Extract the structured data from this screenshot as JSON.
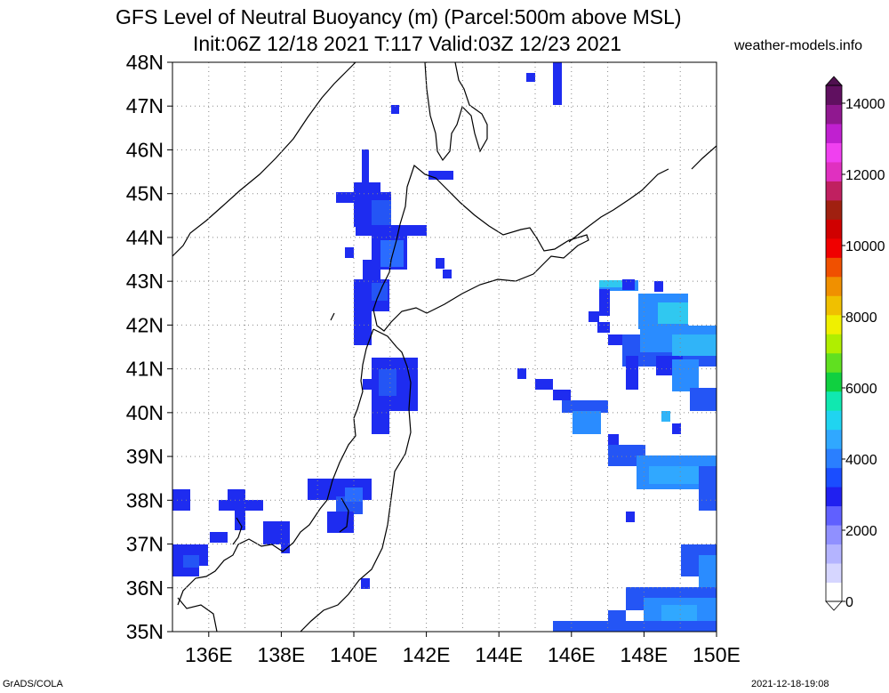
{
  "title_line1": "GFS Level of Neutral Buoyancy (m) (Parcel:500m above MSL)",
  "title_line2": "Init:06Z 12/18 2021 T:117 Valid:03Z 12/23 2021",
  "site": "weather-models.info",
  "footer_left": "GrADS/COLA",
  "footer_right": "2021-12-18-19:08",
  "map": {
    "lon_range": [
      135,
      150
    ],
    "lat_range": [
      35,
      48
    ],
    "lat_labels": [
      "35N",
      "36N",
      "37N",
      "38N",
      "39N",
      "40N",
      "41N",
      "42N",
      "43N",
      "44N",
      "45N",
      "46N",
      "47N",
      "48N"
    ],
    "lon_labels": [
      "136E",
      "138E",
      "140E",
      "142E",
      "144E",
      "146E",
      "148E",
      "150E"
    ],
    "grid": "dotted"
  },
  "colorbar": {
    "labels": [
      "0",
      "2000",
      "4000",
      "6000",
      "8000",
      "10000",
      "12000",
      "14000"
    ],
    "colors": [
      "#ffffff",
      "#d6d6ff",
      "#b4b4ff",
      "#9090ff",
      "#6060ff",
      "#2020f0",
      "#1a4dff",
      "#2a7fff",
      "#30a8ff",
      "#20d4f0",
      "#10e8b0",
      "#10d040",
      "#60e020",
      "#b0ee00",
      "#f0f000",
      "#f0c000",
      "#f09000",
      "#f05000",
      "#f00000",
      "#d00000",
      "#a02010",
      "#c02060",
      "#e030c0",
      "#f040f0",
      "#c020d0",
      "#901890",
      "#601060"
    ]
  }
}
